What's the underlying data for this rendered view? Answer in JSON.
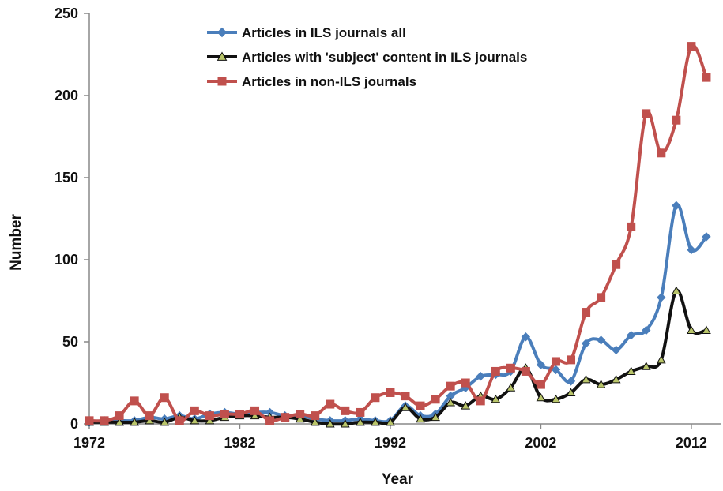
{
  "chart_data": {
    "type": "line",
    "title": "",
    "xlabel": "Year",
    "ylabel": "Number",
    "xlim": [
      1972,
      2014
    ],
    "ylim": [
      0,
      250
    ],
    "x_ticks": [
      1972,
      1982,
      1992,
      2002,
      2012
    ],
    "y_ticks": [
      0,
      50,
      100,
      150,
      200,
      250
    ],
    "grid": false,
    "legend_position": "top-center",
    "x": [
      1972,
      1973,
      1974,
      1975,
      1976,
      1977,
      1978,
      1979,
      1980,
      1981,
      1982,
      1983,
      1984,
      1985,
      1986,
      1987,
      1988,
      1989,
      1990,
      1991,
      1992,
      1993,
      1994,
      1995,
      1996,
      1997,
      1998,
      1999,
      2000,
      2001,
      2002,
      2003,
      2004,
      2005,
      2006,
      2007,
      2008,
      2009,
      2010,
      2011,
      2012,
      2013
    ],
    "series": [
      {
        "name": "Articles in ILS journals all",
        "color": "#4a7ebb",
        "marker": "diamond",
        "values": [
          1,
          2,
          2,
          2,
          4,
          3,
          5,
          3,
          6,
          7,
          6,
          7,
          7,
          5,
          5,
          3,
          2,
          2,
          3,
          2,
          2,
          11,
          5,
          6,
          17,
          22,
          29,
          30,
          32,
          53,
          36,
          33,
          26,
          49,
          51,
          45,
          54,
          57,
          77,
          133,
          106,
          114
        ]
      },
      {
        "name": "Articles with 'subject' content in ILS journals",
        "color": "#111111",
        "marker": "triangle",
        "marker_fill": "#b9c56a",
        "values": [
          1,
          1,
          1,
          1,
          2,
          1,
          4,
          2,
          2,
          4,
          5,
          5,
          4,
          4,
          3,
          1,
          0,
          0,
          1,
          1,
          1,
          10,
          3,
          4,
          13,
          11,
          17,
          15,
          22,
          34,
          16,
          15,
          19,
          27,
          24,
          27,
          32,
          35,
          39,
          81,
          57,
          57
        ]
      },
      {
        "name": "Articles in non-ILS journals",
        "color": "#c0504d",
        "marker": "square",
        "values": [
          2,
          2,
          5,
          14,
          5,
          16,
          2,
          8,
          5,
          6,
          6,
          8,
          2,
          4,
          6,
          5,
          12,
          8,
          7,
          16,
          19,
          17,
          11,
          15,
          23,
          25,
          14,
          32,
          34,
          32,
          24,
          38,
          39,
          68,
          77,
          97,
          120,
          189,
          165,
          185,
          230,
          211
        ]
      }
    ]
  }
}
